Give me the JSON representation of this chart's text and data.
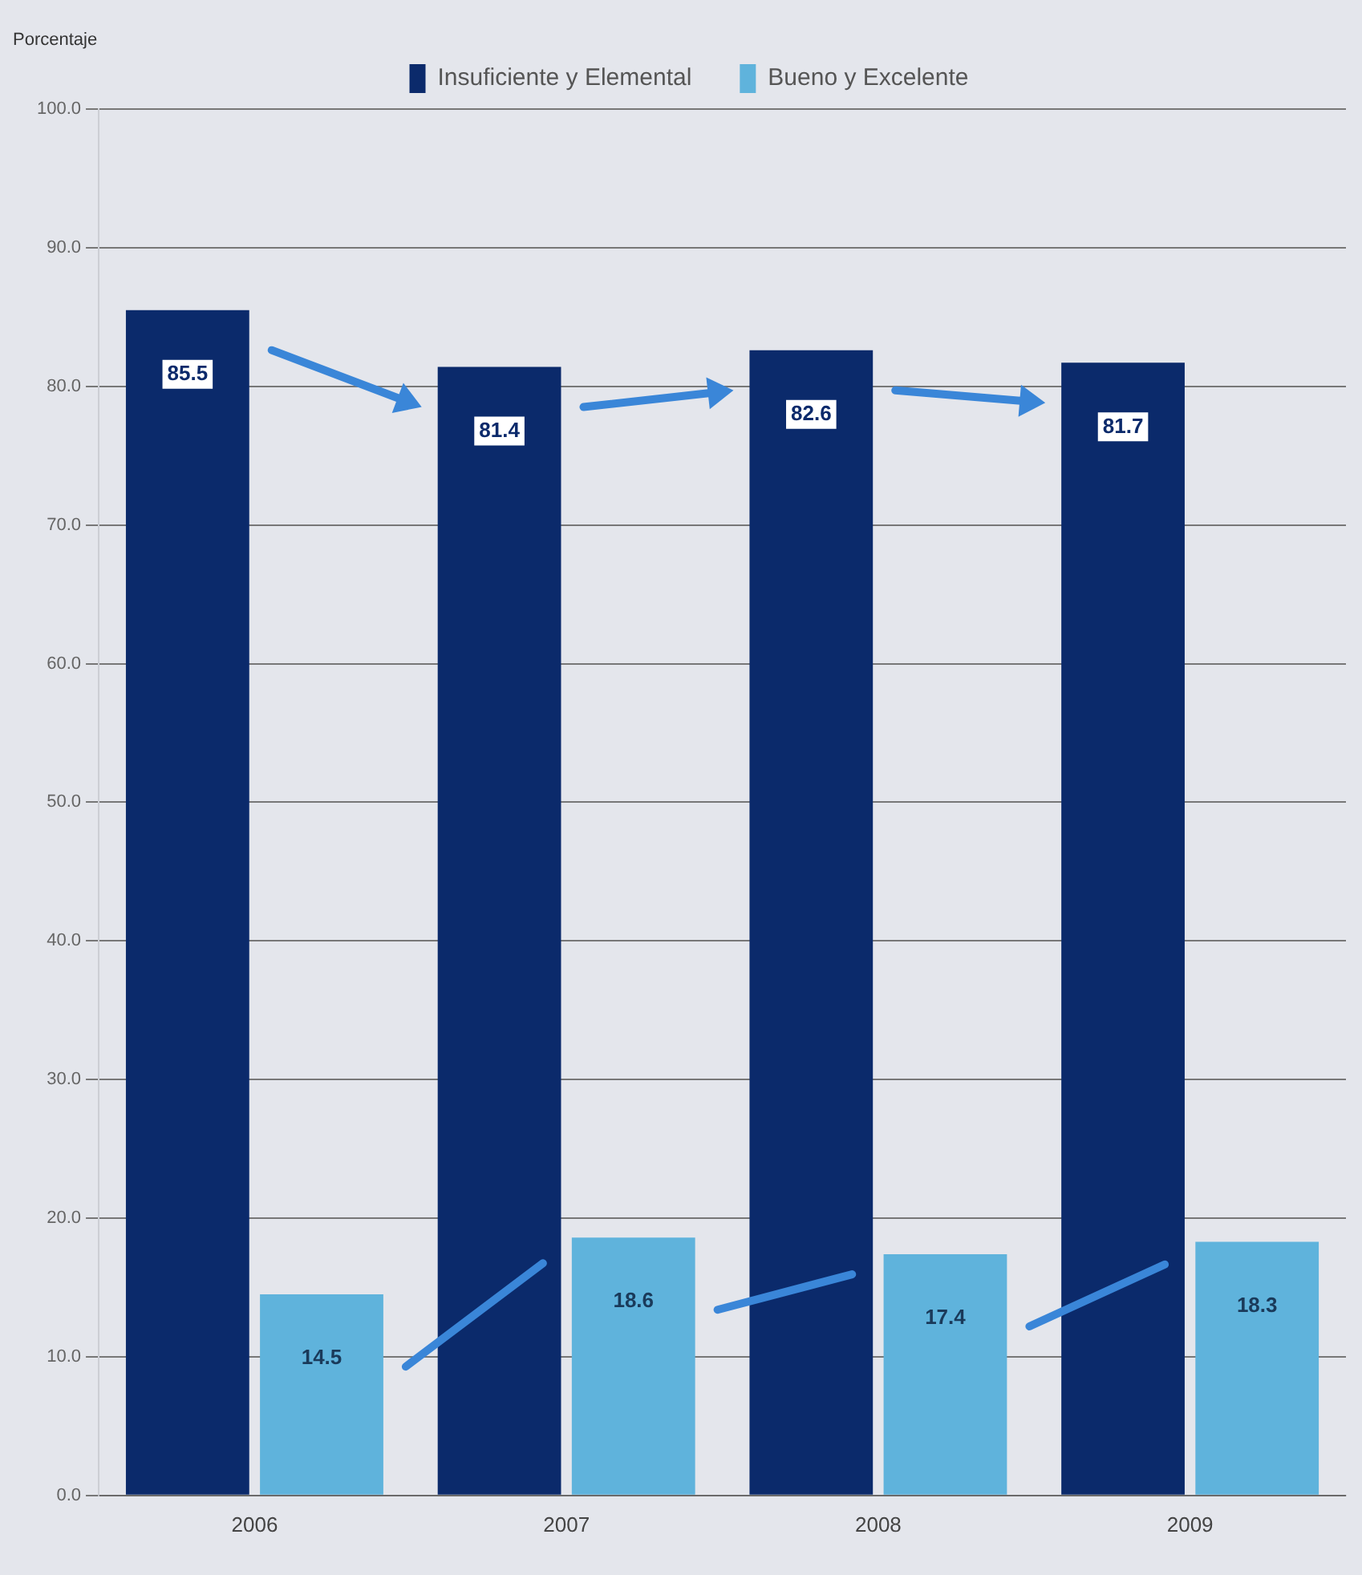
{
  "chart_data": {
    "type": "bar",
    "ylabel": "Porcentaje",
    "categories": [
      "2006",
      "2007",
      "2008",
      "2009"
    ],
    "series": [
      {
        "name": "Insuficiente y Elemental",
        "color": "#0b2a6b",
        "values": [
          85.5,
          81.4,
          82.6,
          81.7
        ]
      },
      {
        "name": "Bueno y Excelente",
        "color": "#5fb3dc",
        "values": [
          14.5,
          18.6,
          17.4,
          18.3
        ]
      }
    ],
    "ylim": [
      0,
      100
    ],
    "yticks": [
      {
        "value": 0,
        "label": "0.0"
      },
      {
        "value": 10,
        "label": "10.0"
      },
      {
        "value": 20,
        "label": "20.0"
      },
      {
        "value": 30,
        "label": "30.0"
      },
      {
        "value": 40,
        "label": "40.0"
      },
      {
        "value": 50,
        "label": "50.0"
      },
      {
        "value": 60,
        "label": "60.0"
      },
      {
        "value": 70,
        "label": "70.0"
      },
      {
        "value": 80,
        "label": "80.0"
      },
      {
        "value": 90,
        "label": "90.0"
      },
      {
        "value": 100,
        "label": "100.0"
      }
    ],
    "grid": "y",
    "legend": "top",
    "data_labels": true
  }
}
